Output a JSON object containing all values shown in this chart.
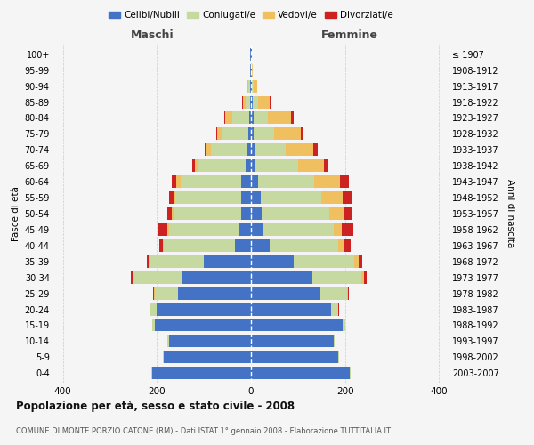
{
  "age_groups": [
    "0-4",
    "5-9",
    "10-14",
    "15-19",
    "20-24",
    "25-29",
    "30-34",
    "35-39",
    "40-44",
    "45-49",
    "50-54",
    "55-59",
    "60-64",
    "65-69",
    "70-74",
    "75-79",
    "80-84",
    "85-89",
    "90-94",
    "95-99",
    "100+"
  ],
  "birth_years": [
    "2003-2007",
    "1998-2002",
    "1993-1997",
    "1988-1992",
    "1983-1987",
    "1978-1982",
    "1973-1977",
    "1968-1972",
    "1963-1967",
    "1958-1962",
    "1953-1957",
    "1948-1952",
    "1943-1947",
    "1938-1942",
    "1933-1937",
    "1928-1932",
    "1923-1927",
    "1918-1922",
    "1913-1917",
    "1908-1912",
    "≤ 1907"
  ],
  "males": {
    "celibe": [
      210,
      185,
      175,
      205,
      200,
      155,
      145,
      100,
      35,
      25,
      20,
      20,
      20,
      12,
      10,
      6,
      4,
      2,
      2,
      1,
      1
    ],
    "coniugato": [
      2,
      2,
      2,
      5,
      15,
      50,
      105,
      115,
      150,
      150,
      145,
      140,
      130,
      100,
      75,
      55,
      35,
      10,
      3,
      1,
      0
    ],
    "vedovo": [
      0,
      0,
      0,
      0,
      0,
      1,
      1,
      2,
      2,
      3,
      4,
      5,
      8,
      8,
      10,
      10,
      15,
      5,
      2,
      0,
      0
    ],
    "divorziato": [
      0,
      0,
      0,
      0,
      1,
      2,
      4,
      5,
      8,
      20,
      8,
      10,
      10,
      5,
      3,
      3,
      2,
      1,
      0,
      0,
      0
    ]
  },
  "females": {
    "nubile": [
      210,
      185,
      175,
      195,
      170,
      145,
      130,
      90,
      40,
      25,
      22,
      20,
      15,
      10,
      8,
      5,
      5,
      3,
      2,
      1,
      1
    ],
    "coniugata": [
      2,
      2,
      2,
      5,
      15,
      60,
      105,
      130,
      145,
      150,
      145,
      130,
      120,
      90,
      65,
      45,
      30,
      12,
      4,
      1,
      0
    ],
    "vedova": [
      0,
      0,
      0,
      0,
      1,
      2,
      5,
      8,
      12,
      18,
      30,
      45,
      55,
      55,
      60,
      55,
      50,
      25,
      8,
      2,
      0
    ],
    "divorziata": [
      0,
      0,
      0,
      0,
      1,
      2,
      5,
      8,
      15,
      25,
      18,
      18,
      18,
      10,
      8,
      5,
      5,
      1,
      0,
      0,
      0
    ]
  },
  "colors": {
    "celibe": "#4472C4",
    "coniugato": "#c5d9a0",
    "vedovo": "#f0c060",
    "divorziato": "#cc2222"
  },
  "xlim": 420,
  "title": "Popolazione per età, sesso e stato civile - 2008",
  "subtitle": "COMUNE DI MONTE PORZIO CATONE (RM) - Dati ISTAT 1° gennaio 2008 - Elaborazione TUTTITALIA.IT",
  "ylabel": "Fasce di età",
  "ylabel_right": "Anni di nascita",
  "xlabel_left": "Maschi",
  "xlabel_right": "Femmine",
  "background_color": "#f5f5f5",
  "grid_color": "#cccccc"
}
